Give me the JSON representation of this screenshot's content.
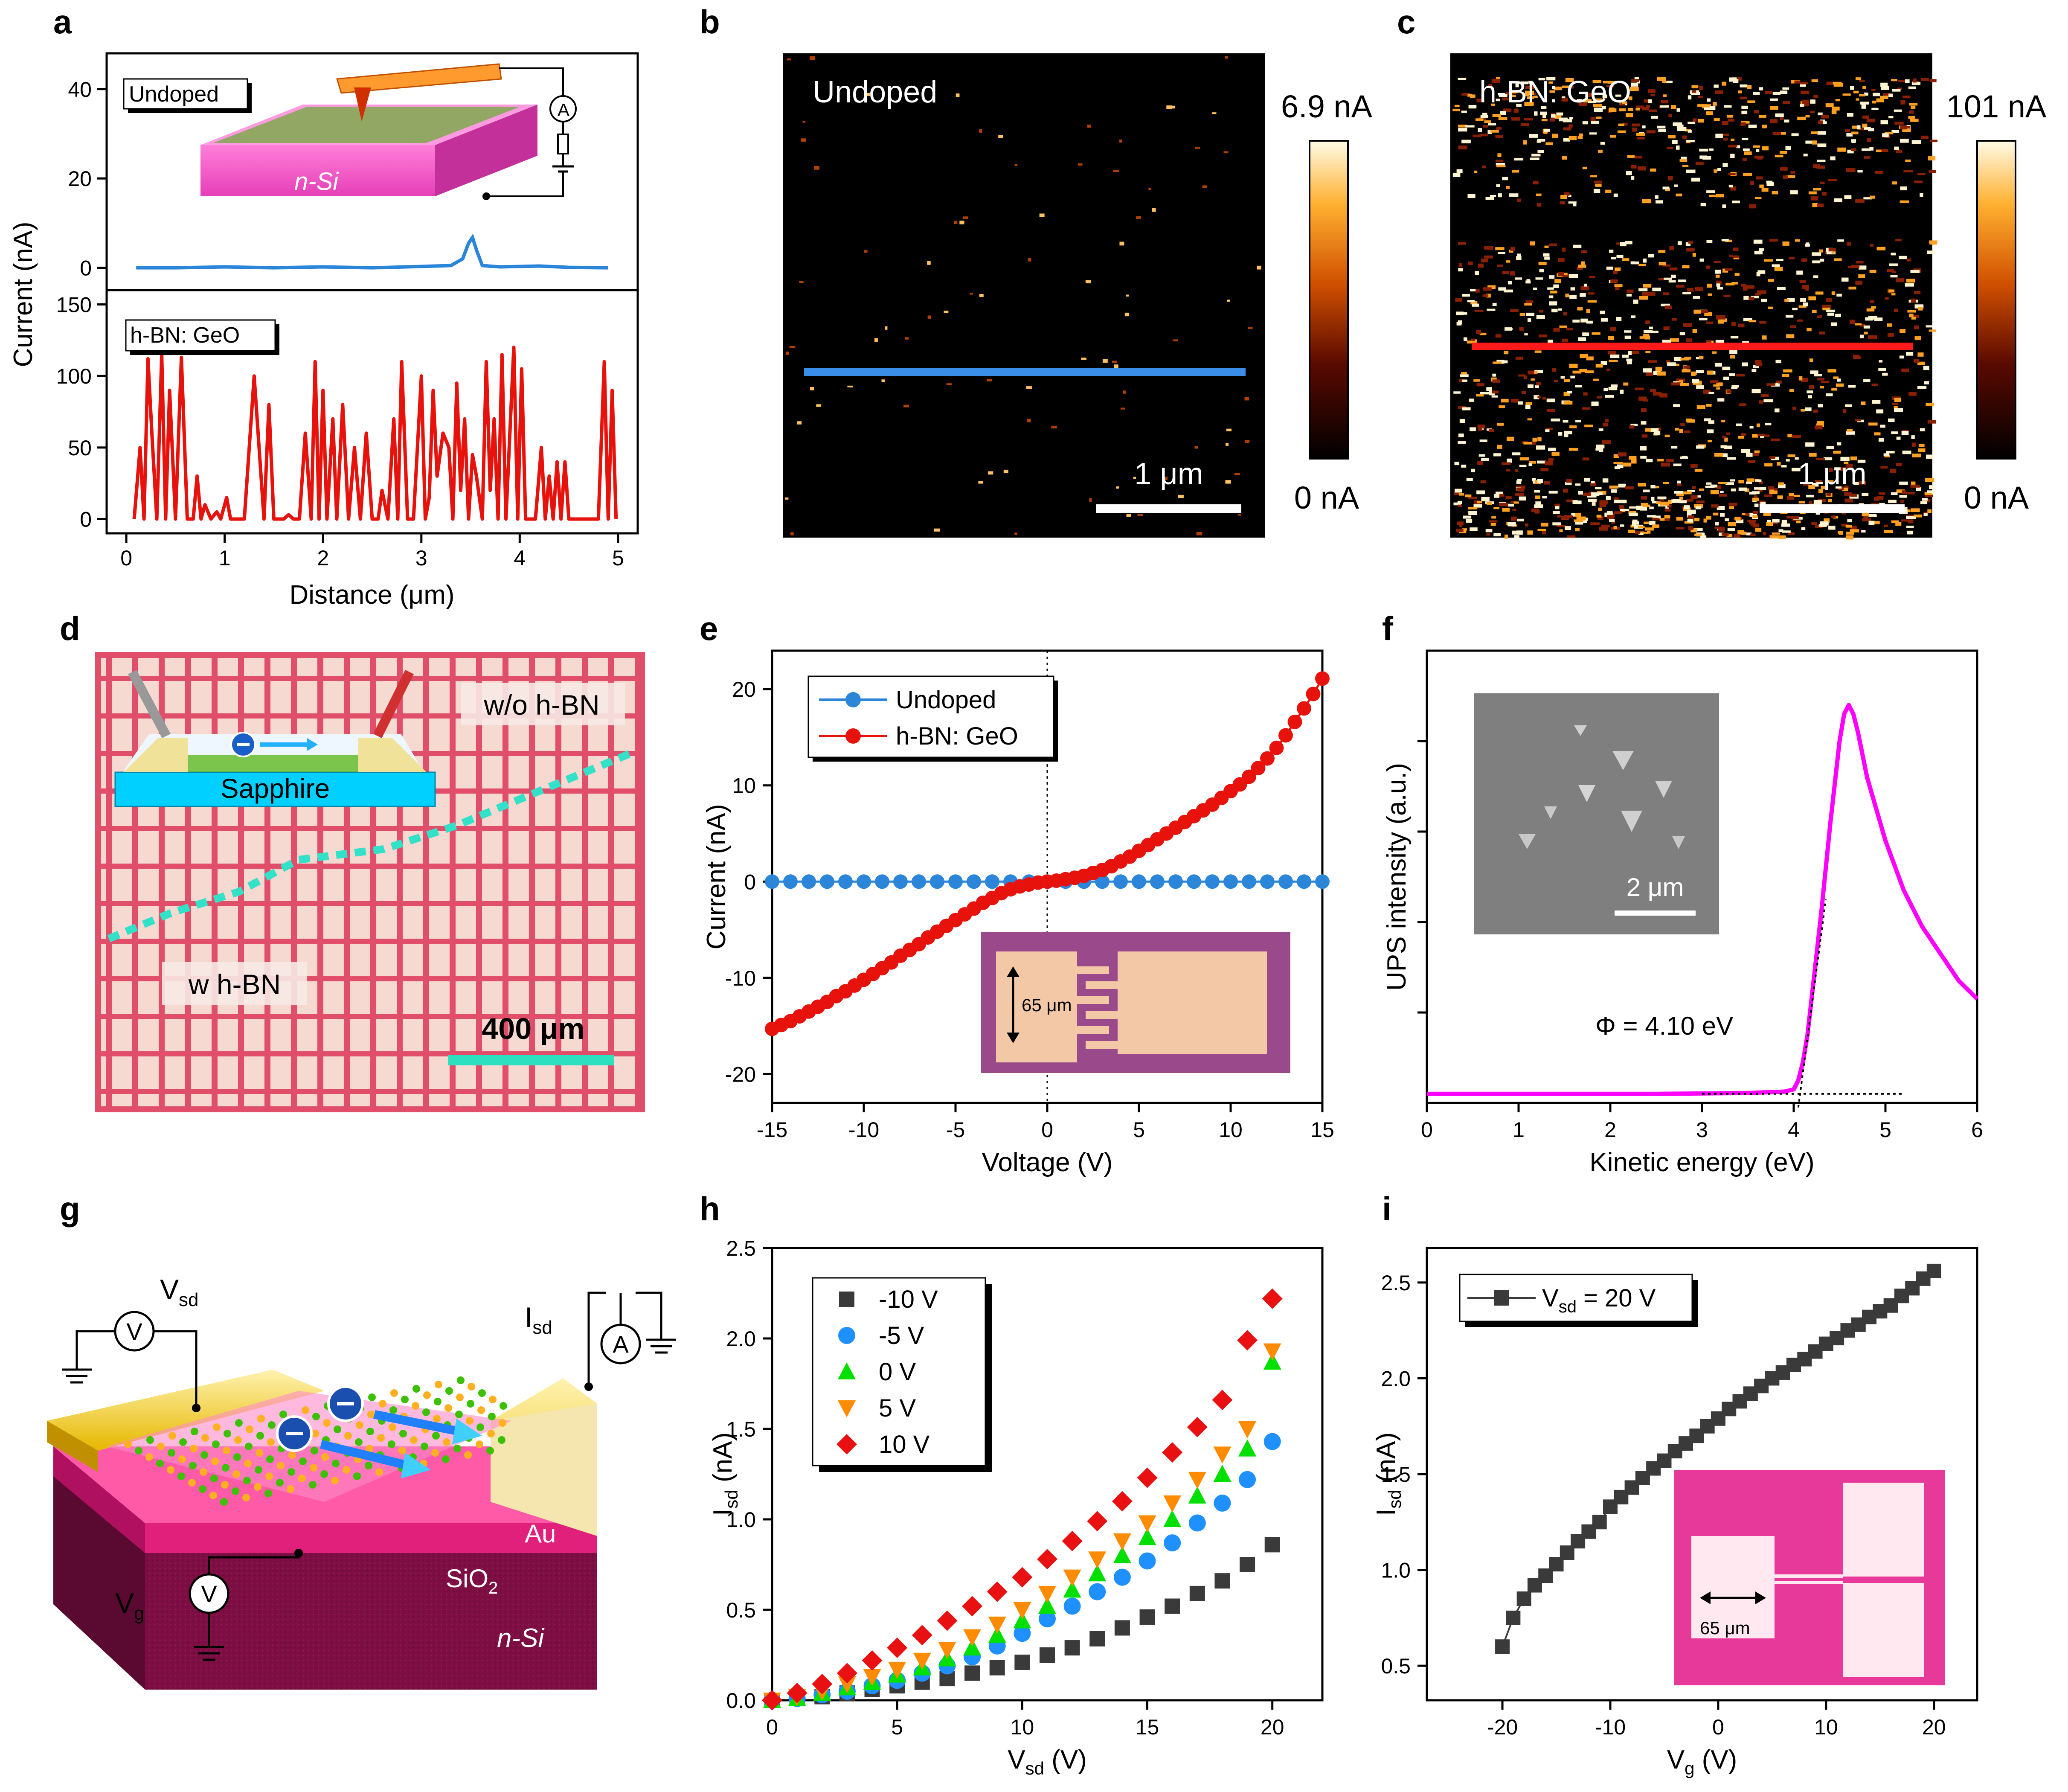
{
  "colors": {
    "undoped": "#2b86d9",
    "geo": "#e8120c",
    "magenta": "#ff00ff",
    "gray": "#3a3a3a",
    "orange": "#ff8c00",
    "green": "#00e000",
    "blue_pt": "#1e90ff",
    "red_pt": "#e81010"
  },
  "panel_labels": [
    "a",
    "b",
    "c",
    "d",
    "e",
    "f",
    "g",
    "h",
    "i"
  ],
  "panel_a": {
    "ylabel": "Current (nA)",
    "xlabel": "Distance (μm)",
    "top_tag": "Undoped",
    "bottom_tag": "h-BN: GeO",
    "schematic_text": "n-Si",
    "ammeter": "A",
    "top_ticks": [
      "0",
      "20",
      "40"
    ],
    "bottom_ticks": [
      "0",
      "50",
      "100",
      "150"
    ],
    "x_ticks": [
      "0",
      "1",
      "2",
      "3",
      "4",
      "5"
    ]
  },
  "panel_b": {
    "tag": "Undoped",
    "cbar_max": "6.9 nA",
    "cbar_min": "0 nA",
    "scale": "1 μm"
  },
  "panel_c": {
    "tag": "h-BN: GeO",
    "cbar_max": "101 nA",
    "cbar_min": "0 nA",
    "scale": "1 μm"
  },
  "panel_d": {
    "label_wo": "w/o h-BN",
    "label_w": "w h-BN",
    "substrate": "Sapphire",
    "scale": "400 μm"
  },
  "panel_e_inset": {
    "dim": "65 μm"
  },
  "panel_f_inset": {
    "scale": "2 μm"
  },
  "panel_f_annot": "Φ = 4.10 eV",
  "panel_g": {
    "vsd": "V",
    "vsd_sub": "sd",
    "isd": "I",
    "isd_sub": "sd",
    "vg": "V",
    "vg_sub": "g",
    "meter_v": "V",
    "meter_a": "A",
    "au": "Au",
    "sio2": "SiO",
    "sio2_sub": "2",
    "nsi": "n-Si"
  },
  "panel_i_inset": {
    "dim": "65 μm"
  },
  "chart_data": [
    {
      "id": "a-top",
      "type": "line",
      "title": "Undoped",
      "xlabel": "Distance (μm)",
      "ylabel": "Current (nA)",
      "xlim": [
        -0.2,
        5.2
      ],
      "ylim": [
        -5,
        48
      ],
      "x": [
        0.1,
        0.5,
        1.0,
        1.5,
        2.0,
        2.5,
        3.0,
        3.3,
        3.42,
        3.48,
        3.52,
        3.56,
        3.62,
        3.8,
        4.2,
        4.5,
        4.9
      ],
      "values": [
        0.0,
        0.0,
        0.2,
        0.0,
        0.2,
        0.0,
        0.3,
        0.5,
        2.0,
        5.5,
        6.8,
        4.0,
        0.5,
        0.2,
        0.4,
        0.1,
        0.0
      ]
    },
    {
      "id": "a-bottom",
      "type": "line",
      "title": "h-BN: GeO",
      "xlabel": "Distance (μm)",
      "ylabel": "Current (nA)",
      "xlim": [
        -0.2,
        5.2
      ],
      "ylim": [
        -10,
        160
      ],
      "x": [
        0.08,
        0.14,
        0.18,
        0.22,
        0.26,
        0.31,
        0.36,
        0.4,
        0.44,
        0.5,
        0.56,
        0.62,
        0.68,
        0.72,
        0.76,
        0.8,
        0.86,
        0.92,
        0.96,
        1.02,
        1.06,
        1.1,
        1.14,
        1.2,
        1.3,
        1.4,
        1.45,
        1.5,
        1.55,
        1.6,
        1.65,
        1.7,
        1.76,
        1.82,
        1.88,
        1.92,
        1.96,
        2.0,
        2.04,
        2.1,
        2.14,
        2.2,
        2.26,
        2.32,
        2.38,
        2.44,
        2.5,
        2.56,
        2.6,
        2.66,
        2.72,
        2.76,
        2.8,
        2.86,
        2.92,
        3.0,
        3.04,
        3.08,
        3.12,
        3.16,
        3.22,
        3.28,
        3.32,
        3.36,
        3.4,
        3.44,
        3.48,
        3.52,
        3.56,
        3.62,
        3.66,
        3.7,
        3.74,
        3.78,
        3.82,
        3.86,
        3.9,
        3.94,
        3.98,
        4.02,
        4.06,
        4.1,
        4.16,
        4.22,
        4.26,
        4.3,
        4.34,
        4.38,
        4.42,
        4.46,
        4.5,
        4.56,
        4.62,
        4.68,
        4.74,
        4.8,
        4.86,
        4.9,
        4.94,
        4.98
      ],
      "values": [
        0,
        50,
        0,
        112,
        60,
        0,
        115,
        0,
        90,
        0,
        113,
        0,
        0,
        30,
        0,
        10,
        0,
        5,
        0,
        15,
        0,
        0,
        0,
        0,
        100,
        0,
        80,
        0,
        0,
        0,
        3,
        0,
        0,
        60,
        0,
        110,
        0,
        90,
        0,
        70,
        0,
        80,
        0,
        50,
        0,
        60,
        0,
        0,
        20,
        0,
        70,
        0,
        110,
        0,
        0,
        100,
        0,
        15,
        90,
        30,
        60,
        50,
        0,
        95,
        20,
        70,
        0,
        45,
        30,
        0,
        110,
        20,
        70,
        0,
        115,
        0,
        60,
        120,
        0,
        105,
        0,
        0,
        0,
        50,
        0,
        30,
        0,
        40,
        0,
        40,
        0,
        0,
        0,
        0,
        0,
        0,
        110,
        0,
        90,
        0
      ]
    },
    {
      "id": "e",
      "type": "line",
      "xlabel": "Voltage (V)",
      "ylabel": "Current (nA)",
      "xlim": [
        -15,
        15
      ],
      "ylim": [
        -23,
        24
      ],
      "xticks": [
        "-15",
        "-10",
        "-5",
        "0",
        "5",
        "10",
        "15"
      ],
      "yticks": [
        "-20",
        "-10",
        "0",
        "10",
        "20"
      ],
      "legend": [
        "Undoped",
        "h-BN: GeO"
      ],
      "series": [
        {
          "name": "Undoped",
          "x": [
            -15,
            -14,
            -13,
            -12,
            -11,
            -10,
            -9,
            -8,
            -7,
            -6,
            -5,
            -4,
            -3,
            -2,
            -1,
            0,
            1,
            2,
            3,
            4,
            5,
            6,
            7,
            8,
            9,
            10,
            11,
            12,
            13,
            14,
            15
          ],
          "values": [
            0,
            0,
            0,
            0,
            0,
            0,
            0,
            0,
            0,
            0,
            0,
            0,
            0,
            0,
            0,
            0,
            0,
            0,
            0,
            0,
            0,
            0,
            0,
            0,
            0,
            0,
            0,
            0,
            0,
            0,
            0
          ]
        },
        {
          "name": "h-BN: GeO",
          "x": [
            -15,
            -14.5,
            -14,
            -13.5,
            -13,
            -12.5,
            -12,
            -11.5,
            -11,
            -10.5,
            -10,
            -9.5,
            -9,
            -8.5,
            -8,
            -7.5,
            -7,
            -6.5,
            -6,
            -5.5,
            -5,
            -4.5,
            -4,
            -3.5,
            -3,
            -2.5,
            -2,
            -1.5,
            -1,
            -0.5,
            0,
            0.5,
            1,
            1.5,
            2,
            2.5,
            3,
            3.5,
            4,
            4.5,
            5,
            5.5,
            6,
            6.5,
            7,
            7.5,
            8,
            8.5,
            9,
            9.5,
            10,
            10.5,
            11,
            11.5,
            12,
            12.5,
            13,
            13.5,
            14,
            14.5,
            15
          ],
          "values": [
            -15.3,
            -14.9,
            -14.5,
            -14.0,
            -13.5,
            -13.0,
            -12.5,
            -11.9,
            -11.4,
            -10.8,
            -10.2,
            -9.6,
            -9.0,
            -8.4,
            -7.7,
            -7.1,
            -6.5,
            -5.8,
            -5.2,
            -4.6,
            -4.0,
            -3.4,
            -2.8,
            -2.2,
            -1.7,
            -1.2,
            -0.8,
            -0.5,
            -0.3,
            -0.1,
            0.0,
            0.1,
            0.25,
            0.4,
            0.6,
            0.9,
            1.2,
            1.6,
            2.1,
            2.6,
            3.2,
            3.8,
            4.4,
            5.0,
            5.6,
            6.2,
            6.8,
            7.4,
            8.0,
            8.7,
            9.4,
            10.1,
            10.9,
            11.8,
            12.8,
            13.9,
            15.2,
            16.6,
            18.0,
            19.5,
            21.1
          ]
        }
      ]
    },
    {
      "id": "f",
      "type": "line",
      "xlabel": "Kinetic energy (eV)",
      "ylabel": "UPS intensity (a.u.)",
      "xlim": [
        0,
        6
      ],
      "xticks": [
        "0",
        "1",
        "2",
        "3",
        "4",
        "5",
        "6"
      ],
      "x": [
        0,
        0.5,
        1,
        1.5,
        2,
        2.5,
        3,
        3.5,
        3.9,
        4.0,
        4.05,
        4.1,
        4.15,
        4.2,
        4.3,
        4.4,
        4.5,
        4.55,
        4.6,
        4.65,
        4.7,
        4.8,
        5.0,
        5.2,
        5.4,
        5.6,
        5.8,
        6.0
      ],
      "values": [
        0.02,
        0.02,
        0.02,
        0.02,
        0.02,
        0.02,
        0.021,
        0.022,
        0.025,
        0.03,
        0.05,
        0.09,
        0.15,
        0.24,
        0.42,
        0.62,
        0.8,
        0.86,
        0.88,
        0.86,
        0.82,
        0.72,
        0.58,
        0.47,
        0.39,
        0.33,
        0.27,
        0.23
      ],
      "annotation": "Φ = 4.10 eV"
    },
    {
      "id": "h",
      "type": "scatter",
      "xlabel": "Vsd (V)",
      "ylabel": "Isd (nA)",
      "xlim": [
        0,
        22
      ],
      "ylim": [
        0,
        2.5
      ],
      "xticks": [
        "0",
        "5",
        "10",
        "15",
        "20"
      ],
      "yticks": [
        "0.0",
        "0.5",
        "1.0",
        "1.5",
        "2.0",
        "2.5"
      ],
      "legend": [
        "-10 V",
        "-5 V",
        "0 V",
        "5 V",
        "10 V"
      ],
      "x": [
        0,
        1,
        2,
        3,
        4,
        5,
        6,
        7,
        8,
        9,
        10,
        11,
        12,
        13,
        14,
        15,
        16,
        17,
        18,
        19,
        20
      ],
      "series": [
        {
          "name": "-10 V",
          "values": [
            0,
            0.01,
            0.02,
            0.04,
            0.06,
            0.08,
            0.1,
            0.12,
            0.15,
            0.18,
            0.21,
            0.25,
            0.29,
            0.34,
            0.4,
            0.46,
            0.52,
            0.59,
            0.66,
            0.75,
            0.86
          ]
        },
        {
          "name": "-5 V",
          "values": [
            0,
            0.01,
            0.03,
            0.05,
            0.08,
            0.11,
            0.15,
            0.19,
            0.24,
            0.3,
            0.37,
            0.45,
            0.52,
            0.6,
            0.68,
            0.77,
            0.87,
            0.98,
            1.09,
            1.22,
            1.43
          ]
        },
        {
          "name": "0 V",
          "values": [
            0,
            0.01,
            0.04,
            0.07,
            0.1,
            0.14,
            0.18,
            0.23,
            0.29,
            0.36,
            0.44,
            0.52,
            0.61,
            0.7,
            0.8,
            0.9,
            1.0,
            1.13,
            1.25,
            1.39,
            1.87
          ]
        },
        {
          "name": "5 V",
          "values": [
            0,
            0.02,
            0.05,
            0.09,
            0.13,
            0.17,
            0.22,
            0.28,
            0.35,
            0.42,
            0.5,
            0.59,
            0.68,
            0.78,
            0.88,
            0.98,
            1.09,
            1.22,
            1.36,
            1.5,
            1.93
          ]
        },
        {
          "name": "10 V",
          "values": [
            0,
            0.04,
            0.09,
            0.15,
            0.22,
            0.29,
            0.36,
            0.44,
            0.52,
            0.6,
            0.68,
            0.78,
            0.88,
            0.99,
            1.1,
            1.23,
            1.37,
            1.51,
            1.66,
            1.99,
            2.22
          ]
        }
      ]
    },
    {
      "id": "i",
      "type": "line",
      "xlabel": "Vg (V)",
      "ylabel": "Isd (nA)",
      "xlim": [
        -27,
        24
      ],
      "ylim": [
        0.32,
        2.68
      ],
      "xticks": [
        "-20",
        "-10",
        "0",
        "10",
        "20"
      ],
      "yticks": [
        "0.5",
        "1.0",
        "1.5",
        "2.0",
        "2.5"
      ],
      "legend": [
        "Vsd = 20 V"
      ],
      "x": [
        -20,
        -19,
        -18,
        -17,
        -16,
        -15,
        -14,
        -13,
        -12,
        -11,
        -10,
        -9,
        -8,
        -7,
        -6,
        -5,
        -4,
        -3,
        -2,
        -1,
        0,
        1,
        2,
        3,
        4,
        5,
        6,
        7,
        8,
        9,
        10,
        11,
        12,
        13,
        14,
        15,
        16,
        17,
        18,
        19,
        20
      ],
      "values": [
        0.6,
        0.75,
        0.85,
        0.92,
        0.97,
        1.03,
        1.09,
        1.15,
        1.2,
        1.25,
        1.33,
        1.38,
        1.43,
        1.48,
        1.53,
        1.57,
        1.62,
        1.66,
        1.7,
        1.75,
        1.79,
        1.84,
        1.88,
        1.92,
        1.96,
        2.0,
        2.03,
        2.07,
        2.1,
        2.14,
        2.18,
        2.21,
        2.25,
        2.28,
        2.32,
        2.35,
        2.38,
        2.43,
        2.47,
        2.52,
        2.56
      ]
    }
  ]
}
